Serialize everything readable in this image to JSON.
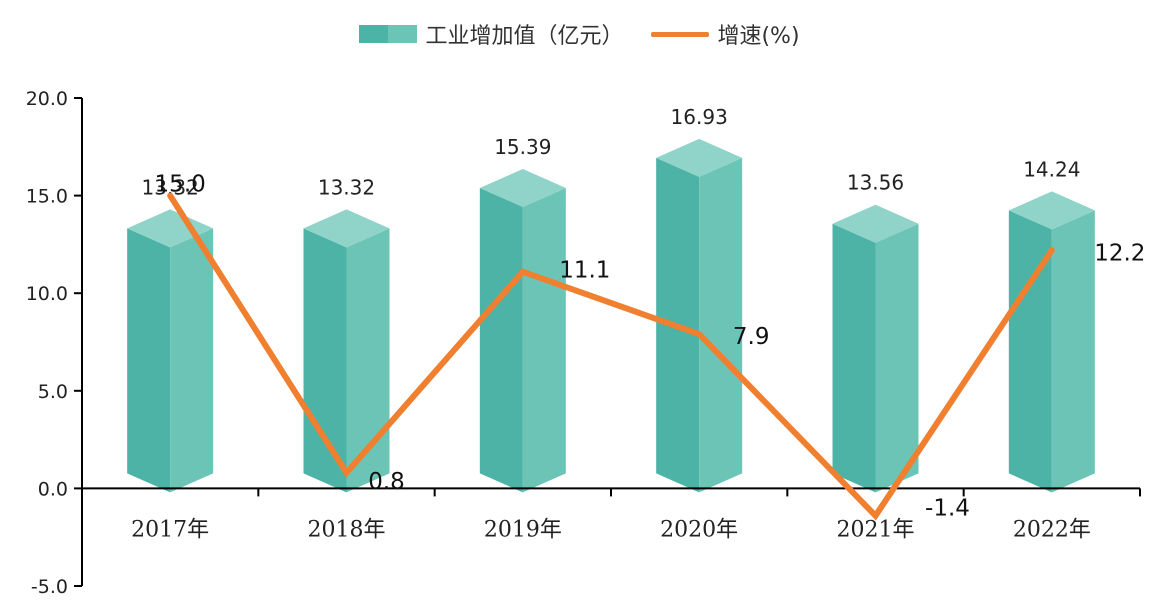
{
  "chart_data": {
    "type": "bar",
    "categories": [
      "2017年",
      "2018年",
      "2019年",
      "2020年",
      "2021年",
      "2022年"
    ],
    "series": [
      {
        "name": "工业增加值（亿元）",
        "type": "bar",
        "color": "#4db3a6",
        "values": [
          13.32,
          13.32,
          15.39,
          16.93,
          13.56,
          14.24
        ],
        "labels": [
          "13.32",
          "13.32",
          "15.39",
          "16.93",
          "13.56",
          "14.24"
        ]
      },
      {
        "name": "增速(%)",
        "type": "line",
        "color": "#f07f2f",
        "values": [
          15.0,
          0.8,
          11.1,
          7.9,
          -1.4,
          12.2
        ],
        "labels": [
          "15.0",
          "0.8",
          "11.1",
          "7.9",
          "-1.4",
          "12.2"
        ]
      }
    ],
    "ylim": [
      -5.0,
      20.0
    ],
    "yticks": [
      "20.0",
      "15.0",
      "10.0",
      "5.0",
      "0.0",
      "-5.0"
    ],
    "legend": "top-center",
    "grid": false
  }
}
